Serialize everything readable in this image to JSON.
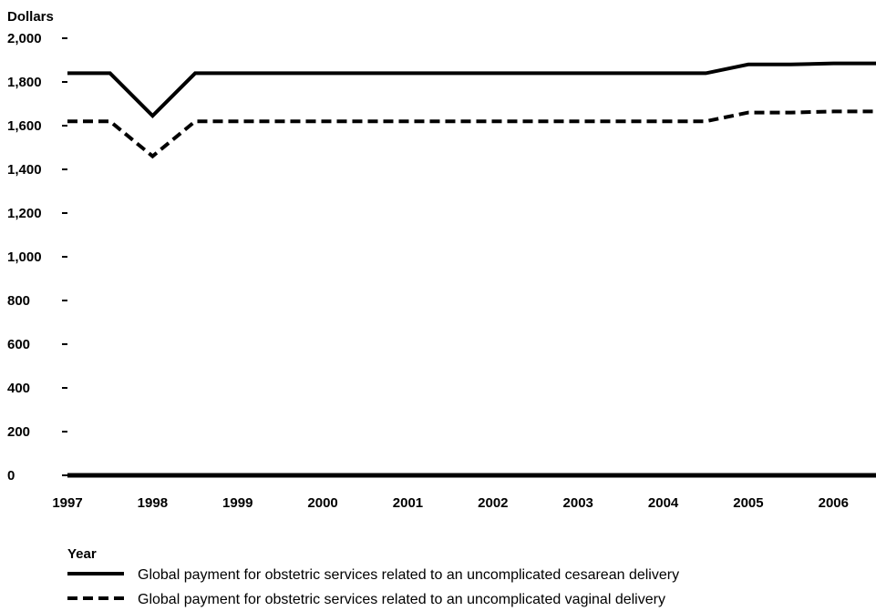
{
  "chart_data": {
    "type": "line",
    "ylabel": "Dollars",
    "xlabel": "Year",
    "ylim": [
      0,
      2000
    ],
    "y_ticks": [
      "0",
      "200",
      "400",
      "600",
      "800",
      "1,000",
      "1,200",
      "1,400",
      "1,600",
      "1,800",
      "2,000"
    ],
    "x_ticks": [
      "1997",
      "1998",
      "1999",
      "2000",
      "2001",
      "2002",
      "2003",
      "2004",
      "2005",
      "2006"
    ],
    "x": [
      1997,
      1997.5,
      1998,
      1998.5,
      1999,
      2000,
      2001,
      2002,
      2003,
      2004,
      2004.5,
      2005,
      2005.5,
      2006,
      2006.5
    ],
    "grid": false,
    "legend_position": "bottom",
    "series": [
      {
        "name": "Global payment for obstetric services related to an uncomplicated cesarean delivery",
        "style": "solid",
        "color": "#000000",
        "values": [
          1840,
          1840,
          1645,
          1840,
          1840,
          1840,
          1840,
          1840,
          1840,
          1840,
          1840,
          1880,
          1880,
          1885,
          1885
        ]
      },
      {
        "name": "Global payment for obstetric services related to an uncomplicated vaginal delivery",
        "style": "dashed",
        "color": "#000000",
        "values": [
          1620,
          1620,
          1460,
          1620,
          1620,
          1620,
          1620,
          1620,
          1620,
          1620,
          1620,
          1660,
          1660,
          1665,
          1665
        ]
      }
    ]
  }
}
